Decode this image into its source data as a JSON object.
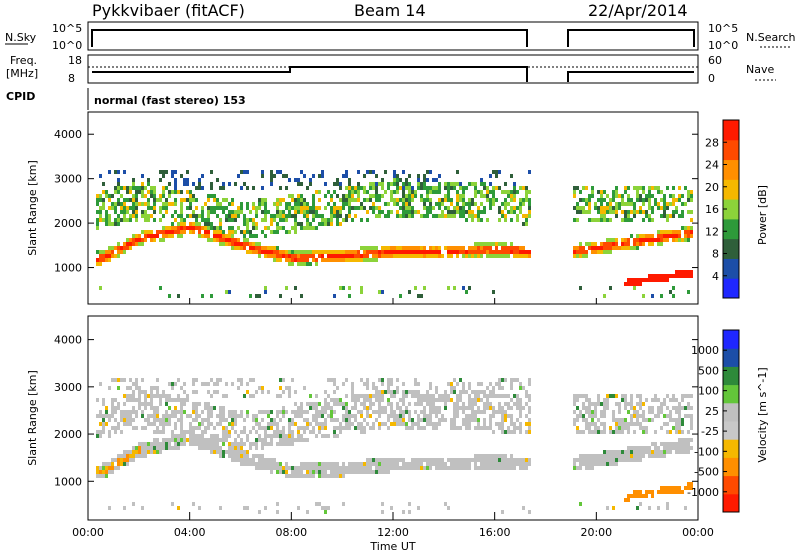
{
  "header": {
    "station": "Pykkvibaer (fitACF)",
    "beam": "Beam 14",
    "date": "22/Apr/2014"
  },
  "panels": {
    "nsky": {
      "left_label": "N.Sky",
      "left_ticks": [
        "10^5",
        "10^0"
      ],
      "right_label": "N.Search",
      "right_ticks": [
        "10^5",
        "10^0"
      ]
    },
    "freq": {
      "left_label_1": "Freq.",
      "left_label_2": "[MHz]",
      "left_ticks": [
        "18",
        "8"
      ],
      "right_label": "Nave",
      "right_ticks": [
        "60",
        "0"
      ]
    },
    "cpid": {
      "left_label": "CPID",
      "text": "normal (fast stereo) 153"
    }
  },
  "colors": {
    "power_scale": [
      "#1f27ff",
      "#1c4ea8",
      "#2f5f3a",
      "#2e9a3a",
      "#8cd33a",
      "#f5b800",
      "#ff8f00",
      "#ff4a00",
      "#ff1a00"
    ],
    "velocity_scale": [
      "#1f27ff",
      "#1c4ea8",
      "#2e8a3a",
      "#63c63a",
      "#c0c0c0",
      "#c8c8c8",
      "#f5b800",
      "#ff8f00",
      "#ff4a00",
      "#ff1a00"
    ]
  },
  "chart_data": [
    {
      "type": "heatmap",
      "title": "Power",
      "ylabel": "Slant Range [km]",
      "yticks": [
        "1000",
        "2000",
        "3000",
        "4000"
      ],
      "ylim": [
        180,
        4500
      ],
      "colorbar": {
        "label": "Power [dB]",
        "ticks": [
          "4",
          "8",
          "12",
          "16",
          "20",
          "24",
          "28"
        ],
        "range": [
          0,
          30
        ]
      },
      "data_gap_hours": [
        17.4,
        19.0
      ],
      "echo_bands": [
        {
          "name": "main",
          "points": [
            [
              0.5,
              1250
            ],
            [
              2,
              1700
            ],
            [
              4,
              1950
            ],
            [
              6,
              1550
            ],
            [
              8,
              1250
            ],
            [
              10,
              1300
            ],
            [
              12,
              1400
            ],
            [
              14,
              1400
            ],
            [
              16,
              1450
            ],
            [
              17.4,
              1400
            ]
          ],
          "power_db": 26
        },
        {
          "name": "upper",
          "points": [
            [
              0.5,
              2350
            ],
            [
              2,
              2550
            ],
            [
              4,
              2350
            ],
            [
              6,
              2100
            ],
            [
              8,
              2250
            ],
            [
              12,
              2600
            ],
            [
              16,
              2500
            ],
            [
              17.4,
              2400
            ]
          ],
          "power_db": 12
        }
      ]
    },
    {
      "type": "heatmap",
      "title": "Velocity",
      "ylabel": "Slant Range [km]",
      "yticks": [
        "1000",
        "2000",
        "3000",
        "4000"
      ],
      "ylim": [
        180,
        4500
      ],
      "colorbar": {
        "label": "Velocity [m s^-1]",
        "ticks": [
          "1000",
          "500",
          "100",
          "25",
          "-25",
          "-100",
          "-500",
          "-1000"
        ]
      },
      "xticks": [
        "00:00",
        "04:00",
        "08:00",
        "12:00",
        "16:00",
        "20:00",
        "00:00"
      ],
      "xlabel": "Time UT",
      "xlim": [
        0,
        24
      ],
      "data_gap_hours": [
        17.4,
        19.0
      ]
    }
  ]
}
